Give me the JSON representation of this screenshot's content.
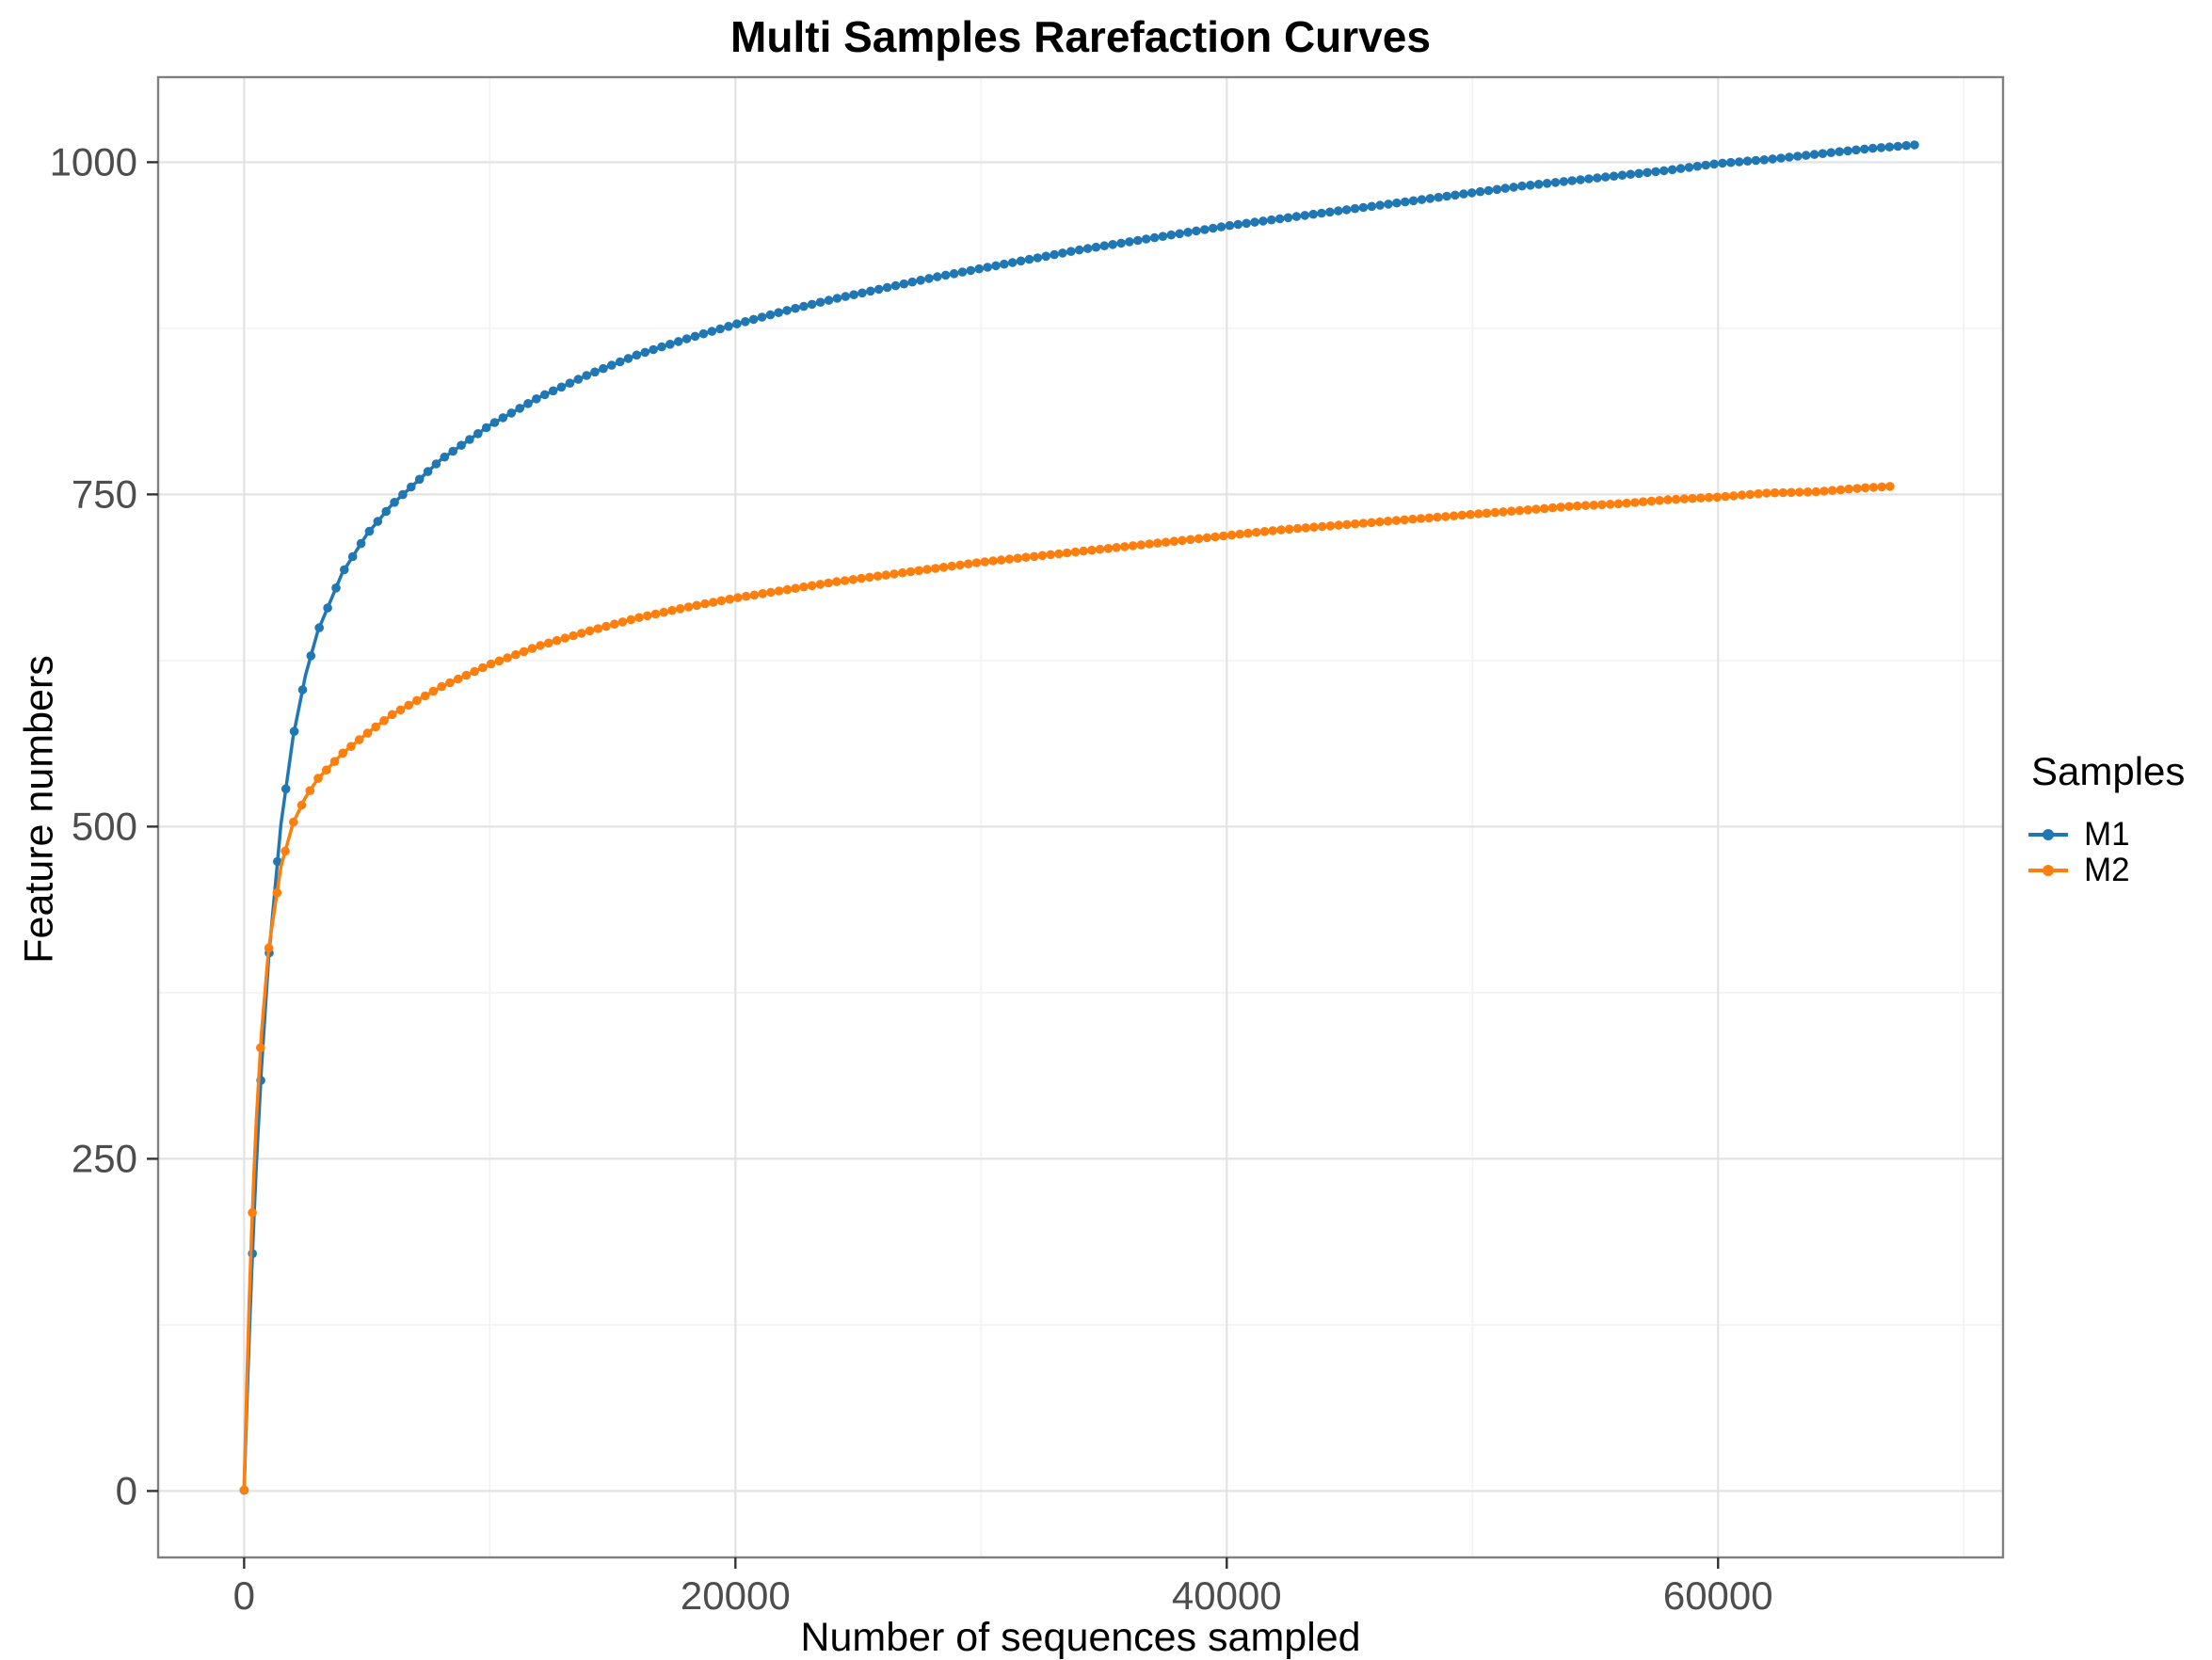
{
  "chart_data": {
    "type": "line",
    "title": "Multi Samples Rarefaction Curves",
    "xlabel": "Number of sequences sampled",
    "ylabel": "Feature numbers",
    "legend_title": "Samples",
    "legend_position": "right",
    "grid": true,
    "xlim": [
      -3500,
      71600
    ],
    "ylim": [
      -50,
      1064
    ],
    "x_ticks": [
      0,
      20000,
      40000,
      60000
    ],
    "x_minor_ticks": [
      10000,
      30000,
      50000,
      70000
    ],
    "y_ticks": [
      0,
      250,
      500,
      750,
      1000
    ],
    "y_minor_ticks": [
      125,
      375,
      625,
      875
    ],
    "series": [
      {
        "name": "M1",
        "color": "#1f77b4",
        "marker_step": 340,
        "x_max": 68000,
        "points": [
          [
            0,
            0
          ],
          [
            100,
            59
          ],
          [
            200,
            112
          ],
          [
            300,
            161
          ],
          [
            400,
            205
          ],
          [
            500,
            246
          ],
          [
            700,
            316
          ],
          [
            1000,
            401
          ],
          [
            1500,
            502
          ],
          [
            2000,
            568
          ],
          [
            2500,
            614
          ],
          [
            3000,
            647
          ],
          [
            4000,
            691
          ],
          [
            5000,
            720
          ],
          [
            6000,
            742
          ],
          [
            8000,
            776
          ],
          [
            10000,
            802
          ],
          [
            12000,
            823
          ],
          [
            14000,
            840
          ],
          [
            16000,
            855
          ],
          [
            18000,
            867
          ],
          [
            20000,
            878
          ],
          [
            22000,
            888
          ],
          [
            24000,
            897
          ],
          [
            26000,
            905
          ],
          [
            28000,
            913
          ],
          [
            30000,
            920
          ],
          [
            32000,
            927
          ],
          [
            34000,
            934
          ],
          [
            36000,
            940
          ],
          [
            38000,
            946
          ],
          [
            40000,
            952
          ],
          [
            42000,
            957
          ],
          [
            44000,
            962
          ],
          [
            46000,
            967
          ],
          [
            48000,
            972
          ],
          [
            50000,
            977
          ],
          [
            52000,
            982
          ],
          [
            54000,
            986
          ],
          [
            56000,
            990
          ],
          [
            58000,
            994
          ],
          [
            60000,
            999
          ],
          [
            62000,
            1002
          ],
          [
            64000,
            1006
          ],
          [
            66000,
            1010
          ],
          [
            68000,
            1013
          ]
        ]
      },
      {
        "name": "M2",
        "color": "#ff7f0e",
        "marker_step": 335,
        "x_max": 67000,
        "points": [
          [
            0,
            0
          ],
          [
            100,
            75
          ],
          [
            200,
            139
          ],
          [
            300,
            193
          ],
          [
            400,
            240
          ],
          [
            500,
            280
          ],
          [
            700,
            343
          ],
          [
            1000,
            408
          ],
          [
            1500,
            470
          ],
          [
            2000,
            503
          ],
          [
            2500,
            522
          ],
          [
            3000,
            536
          ],
          [
            4000,
            555
          ],
          [
            5000,
            570
          ],
          [
            6000,
            584
          ],
          [
            8000,
            605
          ],
          [
            10000,
            622
          ],
          [
            12000,
            636
          ],
          [
            14000,
            647
          ],
          [
            16000,
            657
          ],
          [
            18000,
            665
          ],
          [
            20000,
            672
          ],
          [
            22000,
            678
          ],
          [
            24000,
            684
          ],
          [
            26000,
            689
          ],
          [
            28000,
            694
          ],
          [
            30000,
            699
          ],
          [
            32000,
            703
          ],
          [
            34000,
            707
          ],
          [
            36000,
            711
          ],
          [
            38000,
            715
          ],
          [
            40000,
            719
          ],
          [
            42000,
            723
          ],
          [
            44000,
            726
          ],
          [
            46000,
            729
          ],
          [
            48000,
            732
          ],
          [
            50000,
            735
          ],
          [
            52000,
            738
          ],
          [
            54000,
            741
          ],
          [
            56000,
            743
          ],
          [
            58000,
            746
          ],
          [
            60000,
            748
          ],
          [
            62000,
            751
          ],
          [
            64000,
            752
          ],
          [
            66000,
            755
          ],
          [
            67000,
            756
          ]
        ]
      }
    ]
  },
  "colors": {
    "background": "#ffffff",
    "panel_border": "#7f7f7f",
    "grid_major": "#e3e3e3",
    "grid_minor": "#f2f2f2",
    "axis_tick": "#333333",
    "tick_label": "#4d4d4d",
    "series_m1": "#1f77b4",
    "series_m2": "#ff7f0e"
  }
}
